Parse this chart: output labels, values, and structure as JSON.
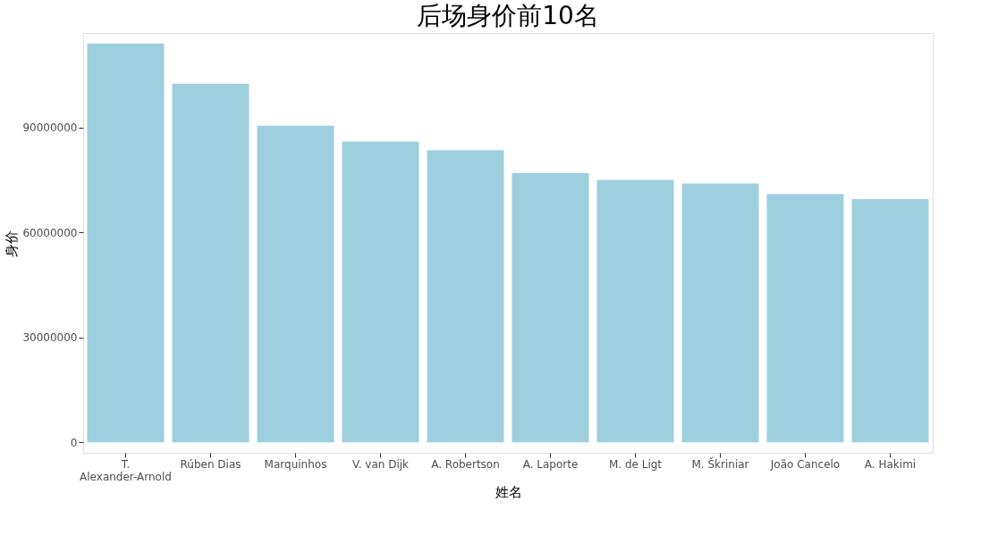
{
  "chart_data": {
    "type": "bar",
    "title": "后场身价前10名",
    "xlabel": "姓名",
    "ylabel": "身价",
    "categories": [
      "T. Alexander-Arnold",
      "Rúben Dias",
      "Marquinhos",
      "V. van Dijk",
      "A. Robertson",
      "A. Laporte",
      "M. de Ligt",
      "M. Škriniar",
      "João Cancelo",
      "A. Hakimi"
    ],
    "values": [
      114000000,
      102500000,
      90500000,
      86000000,
      83500000,
      77000000,
      75000000,
      74000000,
      71000000,
      69500000
    ],
    "color": "#9ecfdf",
    "ylim": [
      -3000000,
      117000000
    ],
    "yticks": [
      0,
      30000000,
      60000000,
      90000000
    ],
    "grid": false
  }
}
